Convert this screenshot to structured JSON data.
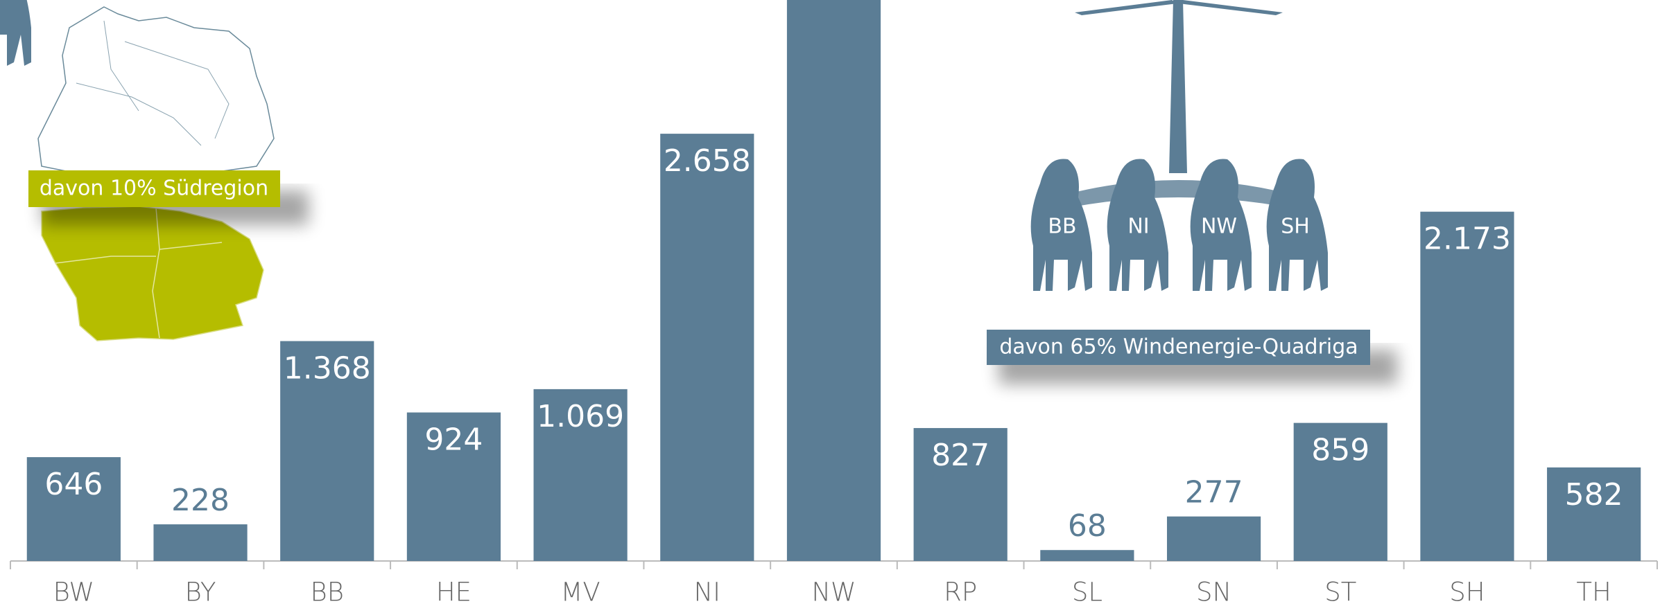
{
  "chart_data": {
    "type": "bar",
    "categories": [
      "BW",
      "BY",
      "BB",
      "HE",
      "MV",
      "NI",
      "NW",
      "RP",
      "SL",
      "SN",
      "ST",
      "SH",
      "TH"
    ],
    "values": [
      646,
      228,
      1368,
      924,
      1069,
      2658,
      3500,
      827,
      68,
      277,
      859,
      2173,
      582
    ],
    "value_labels": [
      "646",
      "228",
      "1.368",
      "924",
      "1.069",
      "2.658",
      null,
      "827",
      "68",
      "277",
      "859",
      "2.173",
      "582"
    ],
    "color": "#5b7d95",
    "ylim": [
      0,
      3490
    ],
    "grid": false,
    "annotations": {
      "south": "davon 10% Südregion",
      "quadriga": "davon 65% Windenergie-Quadriga",
      "horses": [
        "BB",
        "NI",
        "NW",
        "SH"
      ]
    }
  }
}
